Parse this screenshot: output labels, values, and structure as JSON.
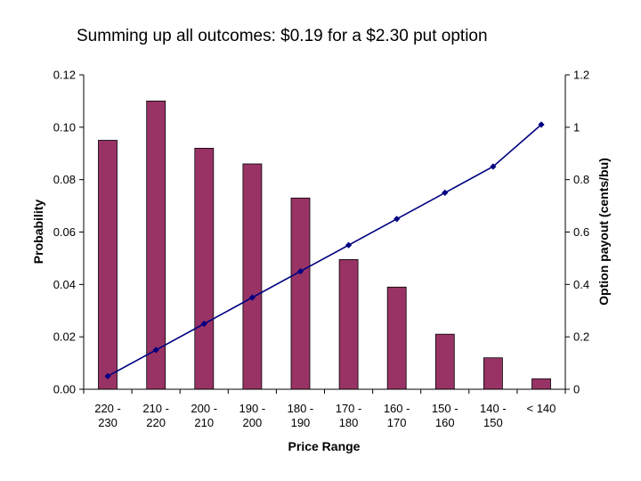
{
  "slide": {
    "title": "Summing up all outcomes: $0.19 for a $2.30 put option"
  },
  "colors": {
    "bar_fill": "#993366",
    "line_color": "#000080",
    "axis_color": "#000000",
    "gridline": "none"
  },
  "chart_data": {
    "type": "bar",
    "combo": "bar + line (secondary axis)",
    "xlabel": "Price Range",
    "ylabel": "Probability",
    "y2label": "Option payout (cents/bu)",
    "grid": false,
    "categories": [
      [
        "220 -",
        "230"
      ],
      [
        "210 -",
        "220"
      ],
      [
        "200 -",
        "210"
      ],
      [
        "190 -",
        "200"
      ],
      [
        "180 -",
        "190"
      ],
      [
        "170 -",
        "180"
      ],
      [
        "160 -",
        "170"
      ],
      [
        "150 -",
        "160"
      ],
      [
        "140 -",
        "150"
      ],
      [
        "< 140"
      ]
    ],
    "series": [
      {
        "type": "bar",
        "axis": "left",
        "values": [
          0.095,
          0.11,
          0.092,
          0.086,
          0.073,
          0.0495,
          0.039,
          0.021,
          0.012,
          0.004
        ]
      },
      {
        "type": "line",
        "axis": "right",
        "values": [
          0.05,
          0.15,
          0.25,
          0.35,
          0.45,
          0.55,
          0.65,
          0.75,
          0.85,
          1.01
        ]
      }
    ],
    "ylim": [
      0,
      0.12
    ],
    "y_ticks": [
      "0.00",
      "0.02",
      "0.04",
      "0.06",
      "0.08",
      "0.10",
      "0.12"
    ],
    "y2lim": [
      0,
      1.2
    ],
    "y2_ticks": [
      "0",
      "0.2",
      "0.4",
      "0.6",
      "0.8",
      "1",
      "1.2"
    ]
  }
}
